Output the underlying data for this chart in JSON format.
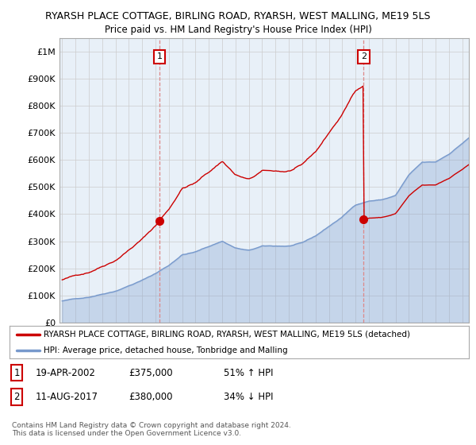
{
  "title": "RYARSH PLACE COTTAGE, BIRLING ROAD, RYARSH, WEST MALLING, ME19 5LS",
  "subtitle": "Price paid vs. HM Land Registry's House Price Index (HPI)",
  "legend_line1": "RYARSH PLACE COTTAGE, BIRLING ROAD, RYARSH, WEST MALLING, ME19 5LS (detached)",
  "legend_line2": "HPI: Average price, detached house, Tonbridge and Malling",
  "footnote": "Contains HM Land Registry data © Crown copyright and database right 2024.\nThis data is licensed under the Open Government Licence v3.0.",
  "sale1_label": "1",
  "sale1_date": "19-APR-2002",
  "sale1_price": "£375,000",
  "sale1_hpi": "51% ↑ HPI",
  "sale1_year": 2002.3,
  "sale1_value": 375000,
  "sale2_label": "2",
  "sale2_date": "11-AUG-2017",
  "sale2_price": "£380,000",
  "sale2_hpi": "34% ↓ HPI",
  "sale2_year": 2017.6,
  "sale2_value": 380000,
  "ylim": [
    0,
    1050000
  ],
  "xlim_start": 1994.8,
  "xlim_end": 2025.5,
  "red_color": "#cc0000",
  "blue_color": "#7799cc",
  "blue_fill": "#ddeeff",
  "dashed_color": "#dd8888",
  "background_color": "#ffffff",
  "chart_bg_color": "#e8f0f8",
  "grid_color": "#cccccc"
}
